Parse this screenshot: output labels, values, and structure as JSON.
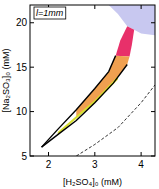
{
  "chart_data": {
    "type": "area",
    "annotation": "l=1mm",
    "x_label": "[H₂SO₄]₀ (mM)",
    "y_label": "[Na₂SO₃]₀ (mM)",
    "xlim": [
      1.6,
      4.3
    ],
    "ylim": [
      5,
      22
    ],
    "xticks": [
      2,
      3,
      4
    ],
    "yticks": [
      5,
      10,
      15,
      20
    ],
    "series": [
      {
        "type": "area",
        "color": "#c8c8f0",
        "x": [
          3.3,
          3.5,
          3.7,
          3.85,
          4.0,
          4.3,
          4.3
        ],
        "values": [
          22,
          21,
          19.6,
          19.2,
          18.8,
          18.6,
          22
        ]
      },
      {
        "type": "area",
        "color": "#e8306a",
        "x": [
          3.45,
          3.55,
          3.7,
          3.85,
          3.8,
          3.75
        ],
        "values": [
          16.3,
          18,
          19.6,
          19.2,
          17.5,
          16.2
        ]
      },
      {
        "type": "area",
        "color": "#f0a050",
        "x": [
          2.6,
          3.0,
          3.3,
          3.45,
          3.75,
          3.7,
          3.4,
          3.0,
          2.6
        ],
        "values": [
          10.2,
          12.6,
          14.5,
          16.3,
          16.2,
          15.3,
          13.2,
          11.0,
          9.3
        ]
      },
      {
        "type": "area",
        "color": "#d8e030",
        "x": [
          2.2,
          3.0,
          3.5,
          3.5,
          3.0,
          2.2
        ],
        "values": [
          7.7,
          11.3,
          14.0,
          13.6,
          11.0,
          7.4
        ]
      },
      {
        "type": "line",
        "color": "#000000",
        "line_style": "solid",
        "x": [
          1.85,
          2.2,
          2.6,
          3.0,
          3.3,
          3.45
        ],
        "values": [
          6,
          8,
          10.2,
          12.6,
          14.5,
          16.3
        ]
      },
      {
        "type": "line",
        "color": "#000000",
        "line_style": "solid",
        "x": [
          1.85,
          2.2,
          2.6,
          3.0,
          3.4,
          3.7
        ],
        "values": [
          6,
          7.4,
          9,
          11,
          13.2,
          15.3
        ]
      },
      {
        "type": "line",
        "color": "#000000",
        "line_style": "dashed",
        "x": [
          2.6,
          3.0,
          3.5,
          4.0,
          4.3
        ],
        "values": [
          5,
          6.3,
          8.2,
          11,
          13
        ]
      }
    ]
  }
}
